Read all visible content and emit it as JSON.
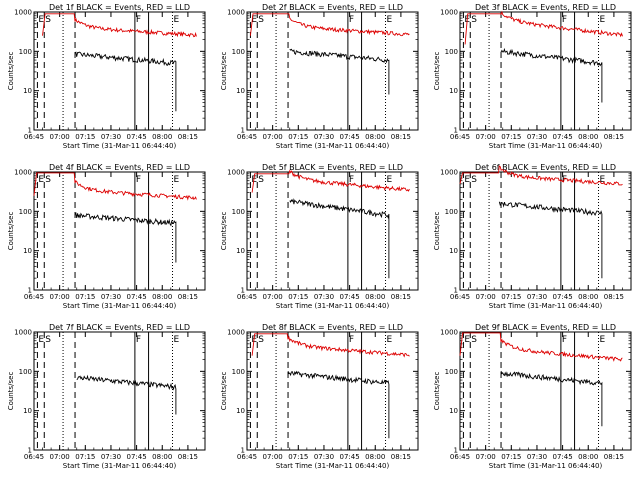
{
  "chart_data": {
    "type": "line",
    "yscale": "log",
    "ylim": [
      1,
      1000
    ],
    "xlim": [
      "06:45",
      "08:25"
    ],
    "x_ticks": [
      "06:45",
      "07:00",
      "07:15",
      "07:30",
      "07:45",
      "08:00",
      "08:15"
    ],
    "y_ticks": [
      "1",
      "10",
      "100",
      "1000"
    ],
    "ylabel": "Counts/sec",
    "xlabel": "Start Time (31-Mar-11 06:44:40)",
    "markers": [
      {
        "label": "E",
        "time": "06:47",
        "style": "dashed"
      },
      {
        "label": "S",
        "time": "06:51",
        "style": "dashed"
      },
      {
        "label": "",
        "time": "07:02",
        "style": "dotted"
      },
      {
        "label": "",
        "time": "07:09",
        "style": "dashed"
      },
      {
        "label": "F",
        "time": "07:44",
        "style": "solid"
      },
      {
        "label": "",
        "time": "07:52",
        "style": "solid"
      },
      {
        "label": "E",
        "time": "08:06",
        "style": "dotted"
      }
    ],
    "series_colors": {
      "events": "#000000",
      "lld": "#dd0000"
    },
    "panels": [
      {
        "title": "Det 1f BLACK = Events, RED = LLD",
        "lld": {
          "start": "06:50",
          "end": "08:20",
          "pre": 250,
          "peak": 900,
          "level": 400,
          "final": 260
        },
        "events": {
          "start": "07:09",
          "end": "08:08",
          "level": 85,
          "final": 50,
          "drop": 3
        }
      },
      {
        "title": "Det 2f BLACK = Events, RED = LLD",
        "lld": {
          "start": "06:47",
          "end": "08:20",
          "pre": 250,
          "peak": 900,
          "level": 420,
          "final": 270
        },
        "events": {
          "start": "07:10",
          "end": "08:08",
          "level": 100,
          "final": 60,
          "drop": 8
        }
      },
      {
        "title": "Det 3f BLACK = Events, RED = LLD",
        "lld": {
          "start": "06:48",
          "end": "08:20",
          "pre": 150,
          "peak": 900,
          "level": 600,
          "final": 260
        },
        "events": {
          "start": "07:09",
          "end": "08:08",
          "level": 100,
          "final": 50,
          "drop": 5
        }
      },
      {
        "title": "Det 4f BLACK = Events, RED = LLD",
        "lld": {
          "start": "06:45",
          "end": "08:20",
          "pre": 250,
          "peak": 950,
          "level": 350,
          "final": 220
        },
        "events": {
          "start": "07:09",
          "end": "08:08",
          "level": 80,
          "final": 50,
          "drop": 5
        }
      },
      {
        "title": "Det 5f BLACK = Events, RED = LLD",
        "lld": {
          "start": "06:48",
          "end": "08:20",
          "pre": 300,
          "peak": 900,
          "level": 650,
          "final": 350
        },
        "events": {
          "start": "07:10",
          "end": "08:08",
          "level": 180,
          "final": 80,
          "drop": 2
        }
      },
      {
        "title": "Det 6f BLACK = Events, RED = LLD",
        "lld": {
          "start": "06:45",
          "end": "08:20",
          "pre": 500,
          "peak": 950,
          "level": 800,
          "final": 500
        },
        "events": {
          "start": "07:08",
          "end": "08:08",
          "level": 160,
          "final": 90,
          "drop": 2
        }
      },
      {
        "title": "Det 7f BLACK = Events, RED = LLD",
        "lld": null,
        "events": {
          "start": "07:10",
          "end": "08:08",
          "level": 70,
          "final": 40,
          "drop": 8
        }
      },
      {
        "title": "Det 8f BLACK = Events, RED = LLD",
        "lld": {
          "start": "06:48",
          "end": "08:20",
          "pre": 250,
          "peak": 900,
          "level": 450,
          "final": 260
        },
        "events": {
          "start": "07:09",
          "end": "08:08",
          "level": 90,
          "final": 50,
          "drop": 2
        }
      },
      {
        "title": "Det 9f BLACK = Events, RED = LLD",
        "lld": {
          "start": "06:45",
          "end": "08:20",
          "pre": 250,
          "peak": 950,
          "level": 380,
          "final": 200
        },
        "events": {
          "start": "07:09",
          "end": "08:08",
          "level": 90,
          "final": 50,
          "drop": 4
        }
      }
    ]
  }
}
